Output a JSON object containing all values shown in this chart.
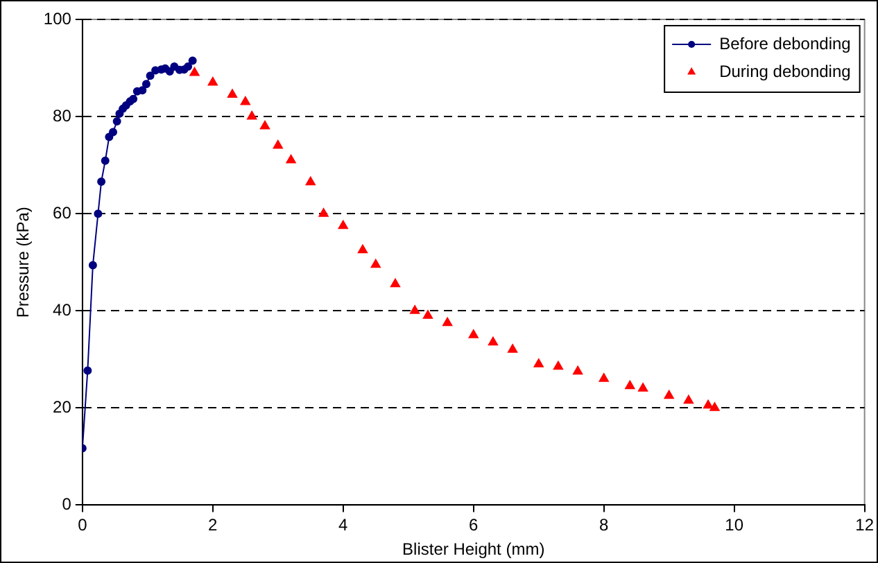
{
  "chart_data": {
    "type": "line",
    "xlabel": "Blister Height (mm)",
    "ylabel": "Pressure (kPa)",
    "xlim": [
      0,
      12
    ],
    "xticks": [
      0,
      2,
      4,
      6,
      8,
      10,
      12
    ],
    "ylim": [
      0,
      100
    ],
    "yticks": [
      0,
      20,
      40,
      60,
      80,
      100
    ],
    "grid": "y",
    "legend": "top right",
    "series": [
      {
        "name": "Before debonding",
        "color": "#000080",
        "type": "line",
        "marker": "circle",
        "x": [
          0,
          0.08,
          0.16,
          0.24,
          0.29,
          0.35,
          0.41,
          0.47,
          0.53,
          0.57,
          0.62,
          0.67,
          0.73,
          0.78,
          0.84,
          0.92,
          0.98,
          1.04,
          1.12,
          1.21,
          1.27,
          1.34,
          1.41,
          1.49,
          1.56,
          1.62,
          1.69
        ],
        "values": [
          11.7,
          27.7,
          49.4,
          60,
          66.6,
          70.9,
          75.8,
          76.8,
          79,
          80.6,
          81.6,
          82.3,
          83.1,
          83.6,
          85.2,
          85.4,
          86.7,
          88.4,
          89.5,
          89.7,
          89.9,
          89.3,
          90.3,
          89.6,
          89.7,
          90.3,
          91.5
        ]
      },
      {
        "name": "During debonding",
        "color": "#ff0000",
        "type": "scatter",
        "marker": "triangle",
        "x": [
          1.72,
          2.0,
          2.3,
          2.5,
          2.6,
          2.8,
          3.0,
          3.2,
          3.5,
          3.7,
          4.0,
          4.3,
          4.5,
          4.8,
          5.1,
          5.3,
          5.6,
          6.0,
          6.3,
          6.6,
          7.0,
          7.3,
          7.6,
          8.0,
          8.4,
          8.6,
          9.0,
          9.3,
          9.6,
          9.7
        ],
        "values": [
          89,
          87,
          84.5,
          83,
          80,
          78,
          74,
          71,
          66.5,
          60,
          57.5,
          52.5,
          49.5,
          45.5,
          40,
          39,
          37.5,
          35,
          33.5,
          32,
          29,
          28.5,
          27.5,
          26,
          24.5,
          24,
          22.5,
          21.5,
          20.5,
          20
        ]
      }
    ]
  }
}
